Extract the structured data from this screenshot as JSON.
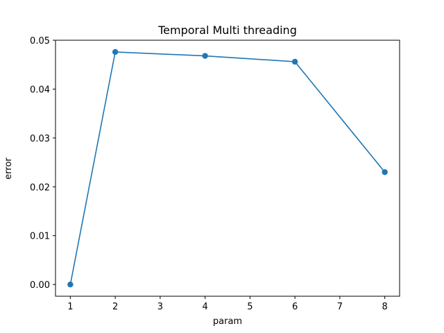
{
  "chart_data": {
    "type": "line",
    "title": "Temporal Multi threading",
    "xlabel": "param",
    "ylabel": "error",
    "xlim": [
      0.67,
      8.33
    ],
    "ylim": [
      -0.0024,
      0.05
    ],
    "xticks": [
      1,
      2,
      3,
      4,
      5,
      6,
      7,
      8
    ],
    "xtick_labels": [
      "1",
      "2",
      "3",
      "4",
      "5",
      "6",
      "7",
      "8"
    ],
    "yticks": [
      0.0,
      0.01,
      0.02,
      0.03,
      0.04,
      0.05
    ],
    "ytick_labels": [
      "0.00",
      "0.01",
      "0.02",
      "0.03",
      "0.04",
      "0.05"
    ],
    "grid": false,
    "series": [
      {
        "x": [
          1,
          2,
          4,
          6,
          8
        ],
        "y": [
          0.0,
          0.0476,
          0.0468,
          0.0456,
          0.023
        ],
        "color": "#1f77b4",
        "marker": "circle"
      }
    ]
  }
}
